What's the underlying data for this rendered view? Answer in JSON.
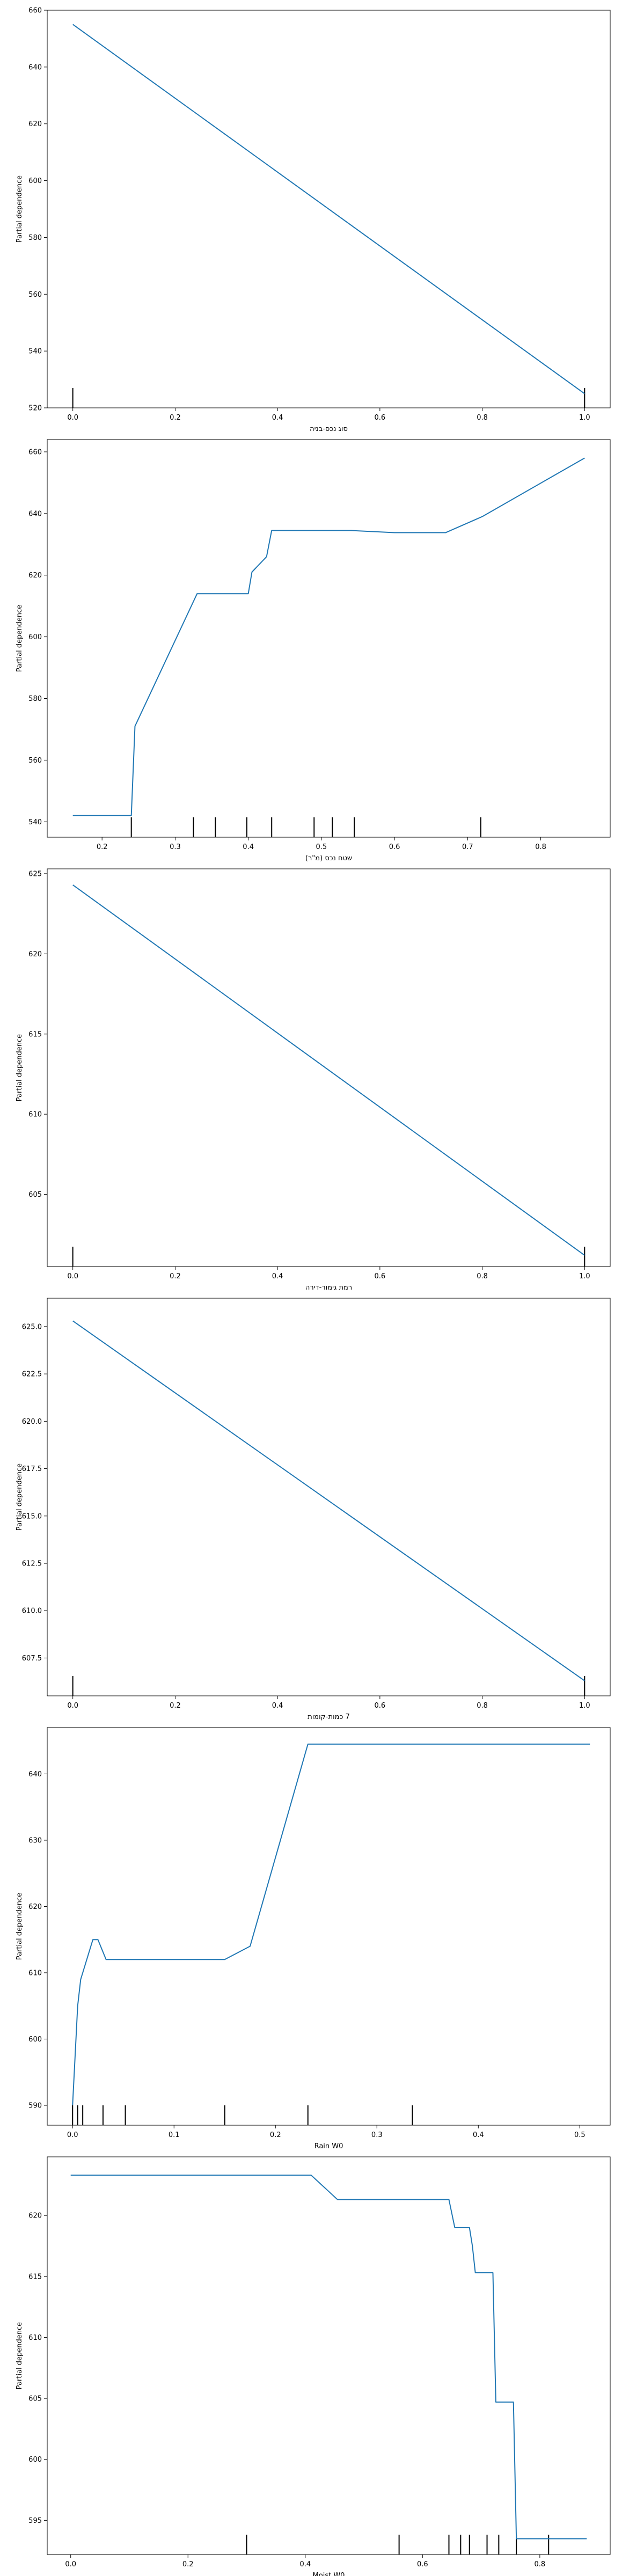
{
  "chart_data": [
    {
      "type": "line",
      "title": "",
      "xlabel": "סוג נכס-בניה",
      "ylabel": "Partial dependence",
      "xlim": [
        -0.05,
        1.05
      ],
      "ylim": [
        520,
        660
      ],
      "xticks": [
        0.0,
        0.2,
        0.4,
        0.6,
        0.8,
        1.0
      ],
      "xtick_labels": [
        "0.0",
        "0.2",
        "0.4",
        "0.6",
        "0.8",
        "1.0"
      ],
      "yticks": [
        520,
        540,
        560,
        580,
        600,
        620,
        640,
        660
      ],
      "ytick_labels": [
        "520",
        "540",
        "560",
        "580",
        "600",
        "620",
        "640",
        "660"
      ],
      "grid": false,
      "line_color": "#1f77b4",
      "series": [
        {
          "x": [
            0.0,
            1.0
          ],
          "y": [
            655,
            525
          ]
        }
      ],
      "rug": [
        0.0,
        1.0
      ]
    },
    {
      "type": "line",
      "title": "",
      "xlabel": "שטח נכס (מ\"ר)",
      "ylabel": "Partial dependence",
      "xlim": [
        0.125,
        0.895
      ],
      "ylim": [
        535,
        664
      ],
      "xticks": [
        0.2,
        0.3,
        0.4,
        0.5,
        0.6,
        0.7,
        0.8
      ],
      "xtick_labels": [
        "0.2",
        "0.3",
        "0.4",
        "0.5",
        "0.6",
        "0.7",
        "0.8"
      ],
      "yticks": [
        540,
        560,
        580,
        600,
        620,
        640,
        660
      ],
      "ytick_labels": [
        "540",
        "560",
        "580",
        "600",
        "620",
        "640",
        "660"
      ],
      "grid": false,
      "line_color": "#1f77b4",
      "series": [
        {
          "x": [
            0.16,
            0.24,
            0.245,
            0.33,
            0.4,
            0.405,
            0.425,
            0.432,
            0.48,
            0.54,
            0.6,
            0.67,
            0.72,
            0.86
          ],
          "y": [
            542,
            542,
            571,
            614,
            614,
            621,
            626,
            634.5,
            634.5,
            634.5,
            633.8,
            633.8,
            639,
            658
          ]
        }
      ],
      "rug": [
        0.24,
        0.325,
        0.355,
        0.398,
        0.432,
        0.49,
        0.515,
        0.545,
        0.718
      ]
    },
    {
      "type": "line",
      "title": "",
      "xlabel": "רמת גימור-דירה",
      "ylabel": "Partial dependence",
      "xlim": [
        -0.05,
        1.05
      ],
      "ylim": [
        600.5,
        625.3
      ],
      "xticks": [
        0.0,
        0.2,
        0.4,
        0.6,
        0.8,
        1.0
      ],
      "xtick_labels": [
        "0.0",
        "0.2",
        "0.4",
        "0.6",
        "0.8",
        "1.0"
      ],
      "yticks": [
        605,
        610,
        615,
        620,
        625
      ],
      "ytick_labels": [
        "605",
        "610",
        "615",
        "620",
        "625"
      ],
      "grid": false,
      "line_color": "#1f77b4",
      "series": [
        {
          "x": [
            0.0,
            1.0
          ],
          "y": [
            624.3,
            601.2
          ]
        }
      ],
      "rug": [
        0.0,
        1.0
      ]
    },
    {
      "type": "line",
      "title": "",
      "xlabel": "7 כמות-קומות",
      "ylabel": "Partial dependence",
      "xlim": [
        -0.05,
        1.05
      ],
      "ylim": [
        605.5,
        626.5
      ],
      "xticks": [
        0.0,
        0.2,
        0.4,
        0.6,
        0.8,
        1.0
      ],
      "xtick_labels": [
        "0.0",
        "0.2",
        "0.4",
        "0.6",
        "0.8",
        "1.0"
      ],
      "yticks": [
        607.5,
        610.0,
        612.5,
        615.0,
        617.5,
        620.0,
        622.5,
        625.0
      ],
      "ytick_labels": [
        "607.5",
        "610.0",
        "612.5",
        "615.0",
        "617.5",
        "620.0",
        "622.5",
        "625.0"
      ],
      "grid": false,
      "line_color": "#1f77b4",
      "series": [
        {
          "x": [
            0.0,
            1.0
          ],
          "y": [
            625.3,
            606.3
          ]
        }
      ],
      "rug": [
        0.0,
        1.0
      ]
    },
    {
      "type": "line",
      "title": "",
      "xlabel": "Rain W0",
      "ylabel": "Partial dependence",
      "xlim": [
        -0.025,
        0.53
      ],
      "ylim": [
        587,
        647
      ],
      "xticks": [
        0.0,
        0.1,
        0.2,
        0.3,
        0.4,
        0.5
      ],
      "xtick_labels": [
        "0.0",
        "0.1",
        "0.2",
        "0.3",
        "0.4",
        "0.5"
      ],
      "yticks": [
        590,
        600,
        610,
        620,
        630,
        640
      ],
      "ytick_labels": [
        "590",
        "600",
        "610",
        "620",
        "630",
        "640"
      ],
      "grid": false,
      "line_color": "#1f77b4",
      "series": [
        {
          "x": [
            0.0,
            0.005,
            0.008,
            0.02,
            0.025,
            0.033,
            0.15,
            0.175,
            0.232,
            0.51
          ],
          "y": [
            590,
            605,
            609,
            615,
            615,
            612,
            612,
            614,
            644.5,
            644.5
          ]
        }
      ],
      "rug": [
        0.0,
        0.005,
        0.01,
        0.03,
        0.052,
        0.15,
        0.232,
        0.335
      ]
    },
    {
      "type": "line",
      "title": "",
      "xlabel": "Moist W0",
      "ylabel": "Partial dependence",
      "xlim": [
        -0.04,
        0.92
      ],
      "ylim": [
        592.2,
        624.8
      ],
      "xticks": [
        0.0,
        0.2,
        0.4,
        0.6,
        0.8
      ],
      "xtick_labels": [
        "0.0",
        "0.2",
        "0.4",
        "0.6",
        "0.8"
      ],
      "yticks": [
        595,
        600,
        605,
        610,
        615,
        620
      ],
      "ytick_labels": [
        "595",
        "600",
        "605",
        "610",
        "615",
        "620"
      ],
      "grid": false,
      "line_color": "#1f77b4",
      "series": [
        {
          "x": [
            0.0,
            0.41,
            0.455,
            0.645,
            0.655,
            0.68,
            0.685,
            0.69,
            0.72,
            0.725,
            0.755,
            0.76,
            0.775,
            0.88
          ],
          "y": [
            623.3,
            623.3,
            621.3,
            621.3,
            619,
            619,
            617.5,
            615.3,
            615.3,
            604.7,
            604.7,
            593.5,
            593.5,
            593.5
          ]
        }
      ],
      "rug": [
        0.3,
        0.56,
        0.645,
        0.665,
        0.68,
        0.71,
        0.73,
        0.76,
        0.815
      ]
    }
  ]
}
